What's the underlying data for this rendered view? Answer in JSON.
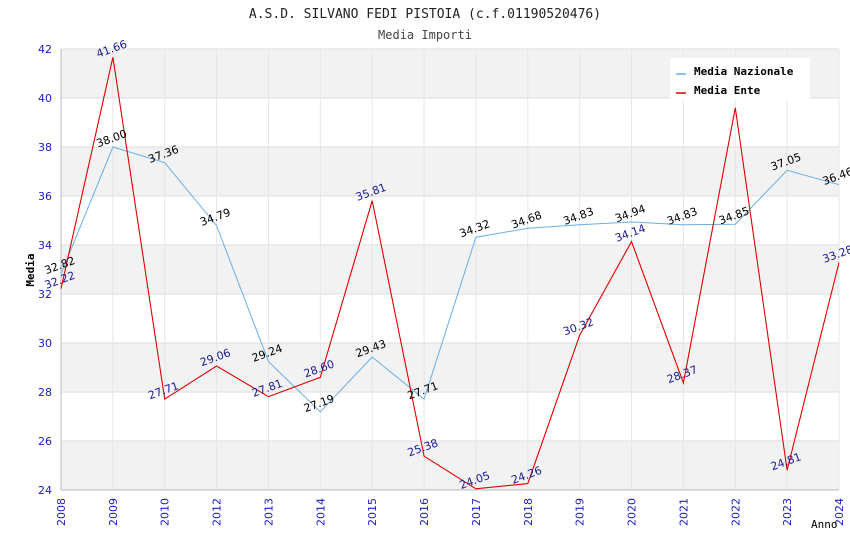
{
  "chart_data": {
    "type": "line",
    "title": "A.S.D. SILVANO FEDI PISTOIA (c.f.01190520476)",
    "subtitle": "Media Importi",
    "ylabel": "Media",
    "xlabel": "Anno",
    "ylim": [
      24,
      42
    ],
    "yticks": [
      24,
      26,
      28,
      30,
      32,
      34,
      36,
      38,
      40,
      42
    ],
    "categories": [
      "2008",
      "2009",
      "2010",
      "2012",
      "2013",
      "2014",
      "2015",
      "2016",
      "2017",
      "2018",
      "2019",
      "2020",
      "2021",
      "2022",
      "2023",
      "2024"
    ],
    "series": [
      {
        "name": "Media Nazionale",
        "color": "#6aaee6",
        "values": [
          32.82,
          38.0,
          37.36,
          34.79,
          29.24,
          27.19,
          29.43,
          27.71,
          34.32,
          34.68,
          34.83,
          34.94,
          34.83,
          34.85,
          37.05,
          36.46
        ],
        "labels": [
          "32.82",
          "38.00",
          "37.36",
          "34.79",
          "29.24",
          "27.19",
          "29.43",
          "27.71",
          "34.32",
          "34.68",
          "34.83",
          "34.94",
          "34.83",
          "34.85",
          "37.05",
          "36.46"
        ]
      },
      {
        "name": "Media Ente",
        "color": "#e00000",
        "values": [
          32.22,
          41.66,
          27.71,
          29.06,
          27.81,
          28.6,
          35.81,
          25.38,
          24.05,
          24.26,
          30.32,
          34.14,
          28.37,
          39.6,
          24.81,
          33.28
        ],
        "labels": [
          "32.22",
          "41.66",
          "27.71",
          "29.06",
          "27.81",
          "28.60",
          "35.81",
          "25.38",
          "24.05",
          "24.26",
          "30.32",
          "34.14",
          "28.37",
          "",
          "24.81",
          "33.28"
        ]
      }
    ],
    "grid": true,
    "legend": "top-right"
  }
}
